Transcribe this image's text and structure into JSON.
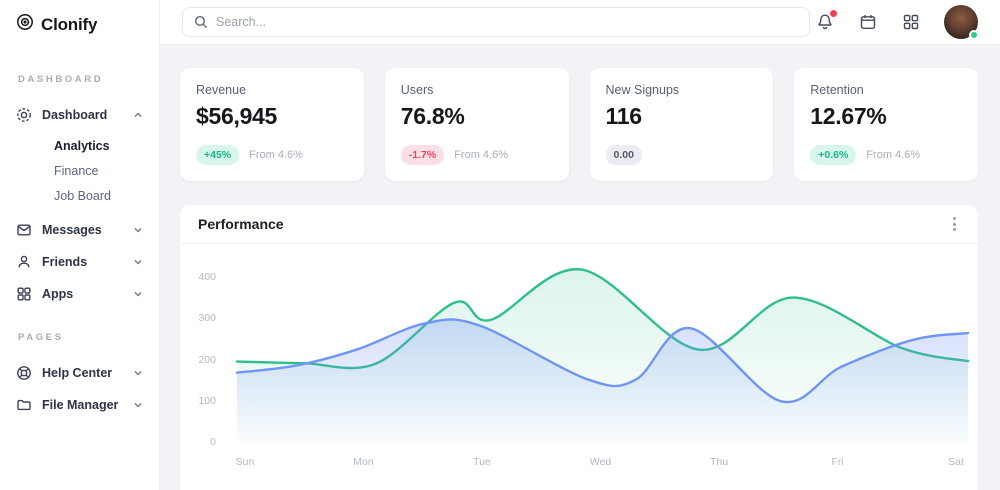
{
  "app": {
    "name": "Clonify"
  },
  "sidebar": {
    "logo": "Clonify",
    "sections": [
      {
        "label": "DASHBOARD",
        "items": [
          {
            "label": "Dashboard",
            "icon": "dashboard-icon",
            "expanded": true,
            "children": [
              "Analytics",
              "Finance",
              "Job Board"
            ],
            "active_child": "Analytics"
          },
          {
            "label": "Messages",
            "icon": "messages-icon"
          },
          {
            "label": "Friends",
            "icon": "friends-icon"
          },
          {
            "label": "Apps",
            "icon": "apps-icon"
          }
        ]
      },
      {
        "label": "PAGES",
        "items": [
          {
            "label": "Help Center",
            "icon": "help-icon"
          },
          {
            "label": "File Manager",
            "icon": "folder-icon"
          }
        ]
      }
    ]
  },
  "topbar": {
    "search_placeholder": "Search...",
    "notification_badge": true
  },
  "stats": [
    {
      "label": "Revenue",
      "value": "$56,945",
      "badge": "+45%",
      "badge_type": "positive",
      "note": "From 4.6%"
    },
    {
      "label": "Users",
      "value": "76.8%",
      "badge": "-1.7%",
      "badge_type": "negative",
      "note": "From 4.6%"
    },
    {
      "label": "New Signups",
      "value": "116",
      "badge": "0.00",
      "badge_type": "neutral",
      "note": ""
    },
    {
      "label": "Retention",
      "value": "12.67%",
      "badge": "+0.6%",
      "badge_type": "positive",
      "note": "From 4.6%"
    }
  ],
  "panel": {
    "title": "Performance"
  },
  "chart_data": {
    "type": "area",
    "title": "Performance",
    "x_labels": [
      "Sun",
      "Mon",
      "Tue",
      "Wed",
      "Thu",
      "Fri",
      "Sat"
    ],
    "y_ticks": [
      0,
      100,
      200,
      300,
      400
    ],
    "ylim": [
      0,
      480
    ],
    "grid": false,
    "legend": "none",
    "series": [
      {
        "name": "series-green",
        "color": "#2fbe8e",
        "fill_top": "rgba(47,190,142,0.17)",
        "fill_bottom": "rgba(47,190,142,0.01)",
        "points": [
          [
            0,
            195
          ],
          [
            0.55,
            191
          ],
          [
            1.15,
            190
          ],
          [
            1.8,
            338
          ],
          [
            2.1,
            296
          ],
          [
            2.85,
            418
          ],
          [
            3.82,
            224
          ],
          [
            4.6,
            350
          ],
          [
            5.5,
            228
          ],
          [
            6.05,
            196
          ]
        ]
      },
      {
        "name": "series-blue",
        "color": "#7195f4",
        "fill_top": "rgba(113,149,244,0.30)",
        "fill_bottom": "rgba(113,149,244,0.02)",
        "points": [
          [
            0,
            168
          ],
          [
            0.5,
            186
          ],
          [
            1.0,
            225
          ],
          [
            1.55,
            287
          ],
          [
            2.0,
            283
          ],
          [
            2.9,
            152
          ],
          [
            3.3,
            151
          ],
          [
            3.75,
            276
          ],
          [
            4.5,
            99
          ],
          [
            5.0,
            182
          ],
          [
            5.6,
            248
          ],
          [
            6.05,
            264
          ]
        ]
      }
    ]
  },
  "colors": {
    "accent_green": "#2fbe8e",
    "accent_blue": "#7195f4",
    "positive": "#12b886",
    "negative": "#ee4457",
    "page_bg": "#f1f3f7"
  }
}
